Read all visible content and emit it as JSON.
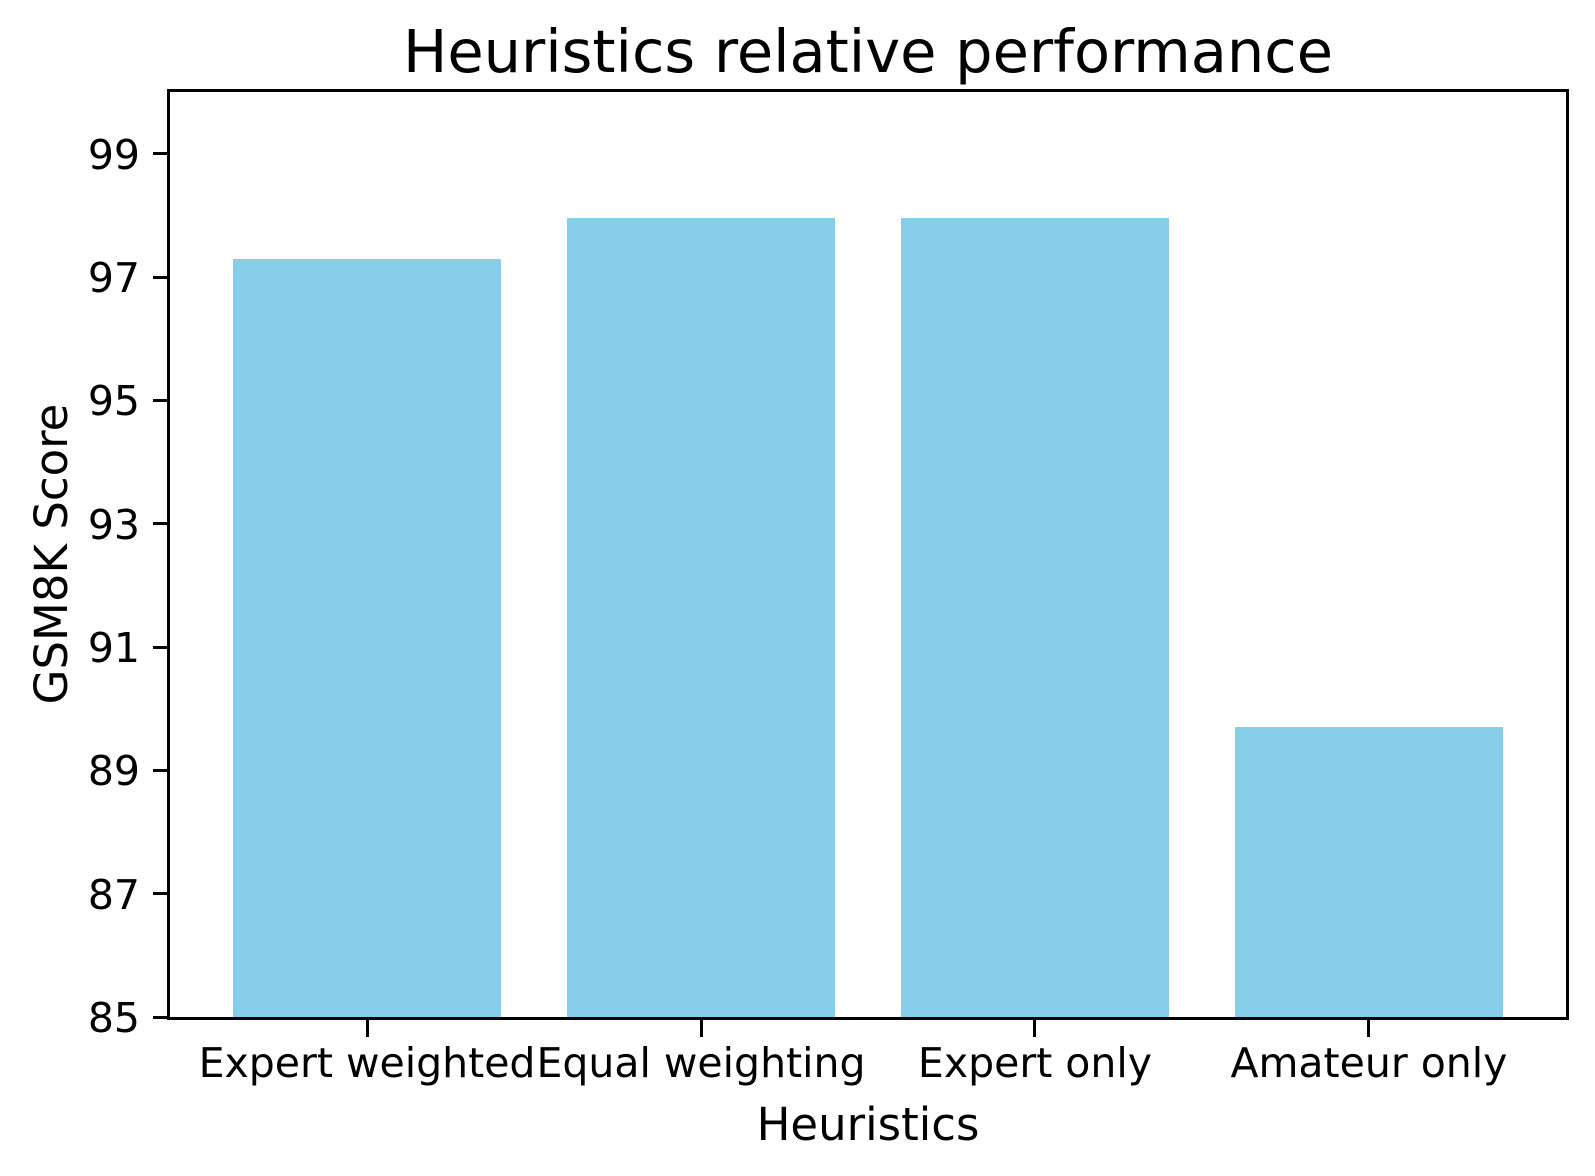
{
  "chart_data": {
    "type": "bar",
    "title": "Heuristics relative performance",
    "xlabel": "Heuristics",
    "ylabel": "GSM8K Score",
    "categories": [
      "Expert weighted",
      "Equal weighting",
      "Expert only",
      "Amateur only"
    ],
    "values": [
      97.3,
      97.95,
      97.95,
      89.7
    ],
    "ylim": [
      85,
      100
    ],
    "yticks": [
      85,
      87,
      89,
      91,
      93,
      95,
      97,
      99
    ],
    "bar_color": "#87CEEB",
    "axis_color": "#000000",
    "background_color": "#ffffff",
    "grid": false,
    "legend": "none",
    "bar_width_fraction": 0.8
  }
}
